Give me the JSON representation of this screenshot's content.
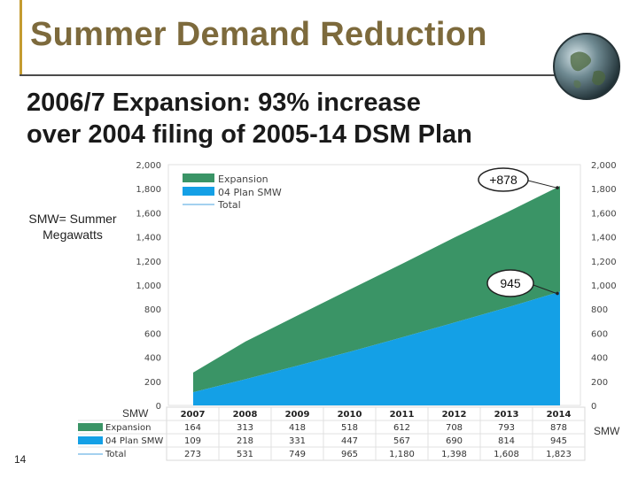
{
  "slide": {
    "title": "Summer Demand Reduction",
    "subtitle_line1": "2006/7 Expansion: 93% increase",
    "subtitle_line2": "over 2004 filing of 2005-14 DSM Plan",
    "smw_note_line1": "SMW= Summer",
    "smw_note_line2": "Megawatts",
    "unit_left": "SMW",
    "unit_right": "SMW",
    "page_number": "14"
  },
  "colors": {
    "title": "#7d6a3c",
    "expansion": "#3a9466",
    "plan04": "#14a0e6",
    "total": "#4aa3df",
    "accent_bar": "#c49b30"
  },
  "chart_data": {
    "type": "area",
    "x": [
      "2007",
      "2008",
      "2009",
      "2010",
      "2011",
      "2012",
      "2013",
      "2014"
    ],
    "series": [
      {
        "name": "Expansion",
        "values": [
          164,
          313,
          418,
          518,
          612,
          708,
          793,
          878
        ],
        "color": "#3a9466"
      },
      {
        "name": "04 Plan SMW",
        "values": [
          109,
          218,
          331,
          447,
          567,
          690,
          814,
          945
        ],
        "color": "#14a0e6"
      },
      {
        "name": "Total",
        "values": [
          273,
          531,
          749,
          965,
          1180,
          1398,
          1608,
          1823
        ],
        "color": "#4aa3df"
      }
    ],
    "stacking": "Expansion stacked on top of 04 Plan SMW",
    "ylim": [
      0,
      2000
    ],
    "yticks": [
      "0",
      "200",
      "400",
      "600",
      "800",
      "1,000",
      "1,200",
      "1,400",
      "1,600",
      "1,800",
      "2,000"
    ],
    "table_rows": [
      {
        "label": "Expansion",
        "values": [
          "164",
          "313",
          "418",
          "518",
          "612",
          "708",
          "793",
          "878"
        ]
      },
      {
        "label": "04 Plan SMW",
        "values": [
          "109",
          "218",
          "331",
          "447",
          "567",
          "690",
          "814",
          "945"
        ]
      },
      {
        "label": "Total",
        "values": [
          "273",
          "531",
          "749",
          "965",
          "1,180",
          "1,398",
          "1,608",
          "1,823"
        ]
      }
    ],
    "annotations": [
      "+878",
      "945"
    ],
    "legend_placement": "top-left",
    "grid": false
  }
}
